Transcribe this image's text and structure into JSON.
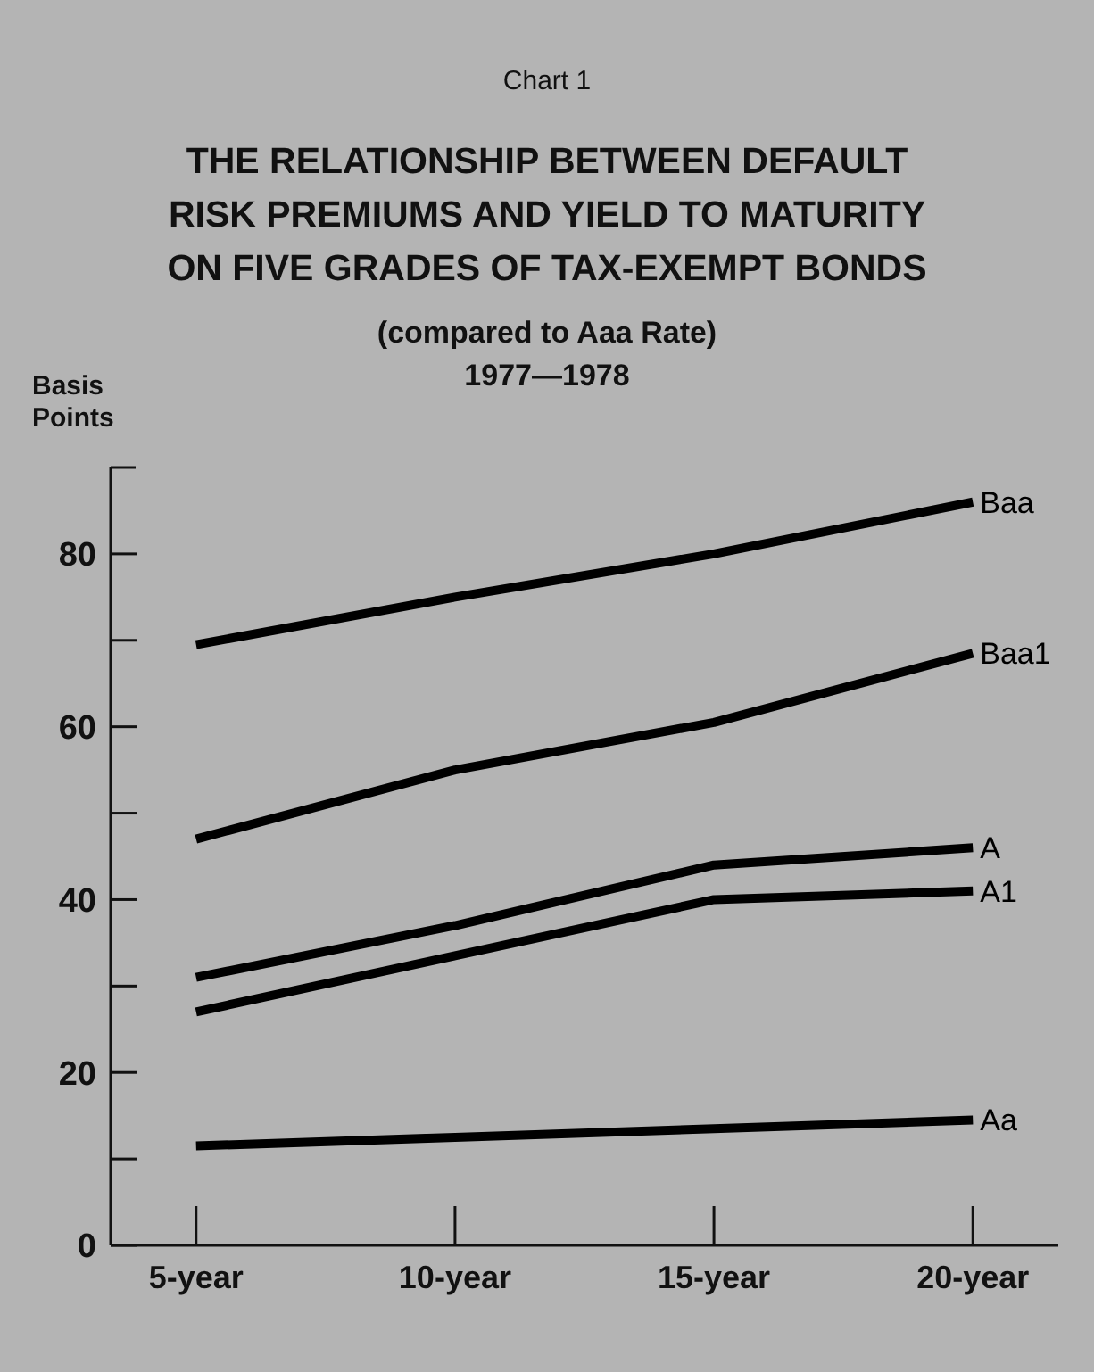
{
  "chart_data": {
    "type": "line",
    "title": "THE RELATIONSHIP BETWEEN DEFAULT\nRISK PREMIUMS AND YIELD TO MATURITY\nON FIVE GRADES OF TAX-EXEMPT BONDS",
    "subtitle": "(compared to Aaa Rate)\n1977—1978",
    "annotations": [
      "Chart 1"
    ],
    "ylabel": "Basis\nPoints",
    "categories": [
      "5-year",
      "10-year",
      "15-year",
      "20-year"
    ],
    "series": [
      {
        "name": "Baa",
        "color": "#000000",
        "values": [
          69.5,
          75,
          80,
          86
        ]
      },
      {
        "name": "Baa1",
        "color": "#000000",
        "values": [
          47,
          55,
          60.5,
          68.5
        ]
      },
      {
        "name": "A",
        "color": "#000000",
        "values": [
          31,
          37,
          44,
          46
        ]
      },
      {
        "name": "A1",
        "color": "#000000",
        "values": [
          27,
          33.5,
          40,
          41
        ]
      },
      {
        "name": "Aa",
        "color": "#000000",
        "values": [
          11.5,
          12.5,
          13.5,
          14.5
        ]
      }
    ],
    "ylim": [
      0,
      90
    ],
    "yticks": [
      0,
      {
        "value": 10,
        "label": null
      },
      20,
      {
        "value": 30,
        "label": null
      },
      40,
      {
        "value": 50,
        "label": null
      },
      60,
      {
        "value": 70,
        "label": null
      },
      80
    ],
    "grid": false,
    "legend": false,
    "marker": "none",
    "line_style": "solid"
  }
}
